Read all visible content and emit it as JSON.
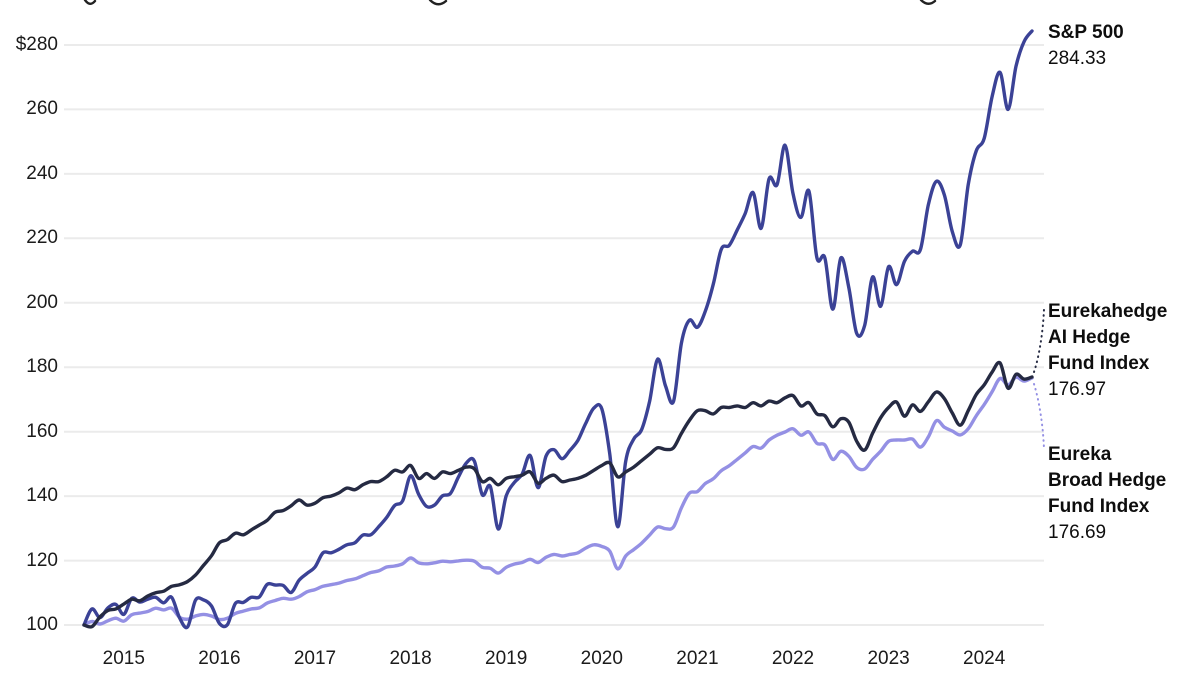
{
  "chart_data": {
    "type": "line",
    "title": "",
    "xlabel": "",
    "ylabel": "",
    "grid": "horizontal",
    "legend_position": "right-edge-annotations",
    "y_axis": {
      "tick_labels": [
        "$280",
        "260",
        "240",
        "220",
        "200",
        "180",
        "160",
        "140",
        "120",
        "100"
      ],
      "tick_values": [
        280,
        260,
        240,
        220,
        200,
        180,
        160,
        140,
        120,
        100
      ],
      "min": 100,
      "max": 280
    },
    "x_axis": {
      "tick_labels": [
        "2015",
        "2016",
        "2017",
        "2018",
        "2019",
        "2020",
        "2021",
        "2022",
        "2023",
        "2024"
      ],
      "unit": "monthly points, Aug 2014 through Jul 2024"
    },
    "series": [
      {
        "name": "S&P 500",
        "name_lines": [
          "S&P 500"
        ],
        "final_value": "284.33",
        "color": "#3b4296",
        "values": [
          100,
          105,
          102.3,
          105.3,
          106.4,
          103.3,
          108.3,
          107.1,
          108,
          108.6,
          106.9,
          108.6,
          102.2,
          99.4,
          107.7,
          107.8,
          105.9,
          100.5,
          100.1,
          106.7,
          107,
          108.6,
          108.7,
          112.6,
          112.4,
          112.3,
          110.1,
          113.9,
          116,
          118,
          122.4,
          122.4,
          123.5,
          124.9,
          125.5,
          127.9,
          128,
          130.5,
          133.4,
          137.1,
          138.5,
          146.3,
          140.6,
          136.8,
          137.2,
          140.1,
          140.8,
          145.9,
          150.3,
          150.9,
          140.4,
          143,
          129.8,
          140.1,
          144.2,
          146.8,
          152.6,
          142.6,
          152.4,
          154.4,
          151.6,
          154.2,
          157.3,
          162.7,
          167.3,
          167.1,
          153,
          130.5,
          150.8,
          157.7,
          160.6,
          169.4,
          182.5,
          174.2,
          169.4,
          187.6,
          194.6,
          192.4,
          197.4,
          205.8,
          216.6,
          217.8,
          222.6,
          227.7,
          234.2,
          223.1,
          238.5,
          236.6,
          248.9,
          233.9,
          226.5,
          234.7,
          214,
          214,
          198,
          213.9,
          204.9,
          190.5,
          193,
          208,
          198.9,
          211.2,
          205.6,
          212.9,
          216,
          216.5,
          230.5,
          237.7,
          233.5,
          222.1,
          218,
          236.6,
          247.1,
          251,
          264,
          271.5,
          260,
          273.4,
          281,
          284.33
        ]
      },
      {
        "name": "Eurekahedge AI Hedge Fund Index",
        "name_lines": [
          "Eurekahedge",
          "AI Hedge",
          "Fund Index"
        ],
        "final_value": "176.97",
        "color": "#252a42",
        "values": [
          100,
          99.5,
          102.5,
          104.5,
          105,
          106.5,
          108,
          107.5,
          109,
          110,
          110.5,
          112,
          112.5,
          113.5,
          115.5,
          118.5,
          121.5,
          125.5,
          126.5,
          128.5,
          128,
          129.5,
          131,
          132.5,
          135,
          135.5,
          137,
          138.8,
          137.2,
          137.8,
          139.5,
          140,
          141,
          142.5,
          142,
          143.5,
          144.5,
          144.5,
          146,
          148,
          147.5,
          149.5,
          145.5,
          147,
          145.5,
          147.5,
          147,
          148,
          149,
          148.5,
          144.5,
          145.5,
          143.5,
          145.5,
          146,
          146.5,
          147.5,
          144,
          145.5,
          146.5,
          144.5,
          145,
          145.5,
          146.5,
          148,
          149.5,
          150.3,
          146,
          147.5,
          149,
          151,
          153,
          155,
          154.5,
          155,
          159.5,
          163.5,
          166.5,
          166.5,
          165.5,
          167.5,
          167.5,
          168,
          167.5,
          169,
          168,
          169.5,
          169,
          170.5,
          171.2,
          168,
          169,
          165.5,
          165,
          161.5,
          164,
          163,
          157,
          154.3,
          159.5,
          164.3,
          167.5,
          169.2,
          164.8,
          168.3,
          166.3,
          169.3,
          172.3,
          170.3,
          165.8,
          162,
          166.5,
          171.5,
          174.5,
          178.5,
          181.3,
          173.5,
          177.8,
          176.3,
          176.97
        ]
      },
      {
        "name": "Eureka Broad Hedge Fund Index",
        "name_lines": [
          "Eureka",
          "Broad Hedge",
          "Fund Index"
        ],
        "final_value": "176.69",
        "color": "#9490e4",
        "values": [
          100,
          101.1,
          100.3,
          101.3,
          102.1,
          101.2,
          103.2,
          103.7,
          104.2,
          105.2,
          104.7,
          105.2,
          102.4,
          101.8,
          102.8,
          103.3,
          102.8,
          101.7,
          102.1,
          103.6,
          104.3,
          105,
          105.3,
          106.8,
          107.6,
          108.3,
          108,
          108.8,
          110.3,
          111,
          112,
          112.5,
          113,
          113.8,
          114.3,
          115.3,
          116.3,
          116.8,
          118,
          118.3,
          119,
          120.8,
          119.3,
          119,
          119.3,
          119.8,
          119.6,
          119.9,
          120.1,
          119.8,
          117.9,
          117.6,
          116.1,
          117.9,
          118.9,
          119.4,
          120.4,
          119.4,
          121,
          121.9,
          121.4,
          121.9,
          122.4,
          123.9,
          124.9,
          124.4,
          122.9,
          117.4,
          121.4,
          123.4,
          125.4,
          127.9,
          130.4,
          129.9,
          130.4,
          136.4,
          140.9,
          141.4,
          143.9,
          145.4,
          147.9,
          149.4,
          151.4,
          153.4,
          155.4,
          154.9,
          157.4,
          158.9,
          159.9,
          160.9,
          158.9,
          159.9,
          156.4,
          155.9,
          151.4,
          153.9,
          152.4,
          148.9,
          148.4,
          151.4,
          153.9,
          157,
          157.4,
          157.4,
          157.7,
          155.2,
          158.4,
          163.4,
          161.4,
          160.2,
          159,
          160.9,
          164.9,
          168.4,
          172.4,
          176.5,
          174.5,
          176.9,
          175.7,
          176.69
        ]
      }
    ],
    "colors": {
      "gridline": "#ebebeb",
      "tick_text": "#1b1b1b",
      "annotation_text": "#0e0e0e"
    }
  }
}
